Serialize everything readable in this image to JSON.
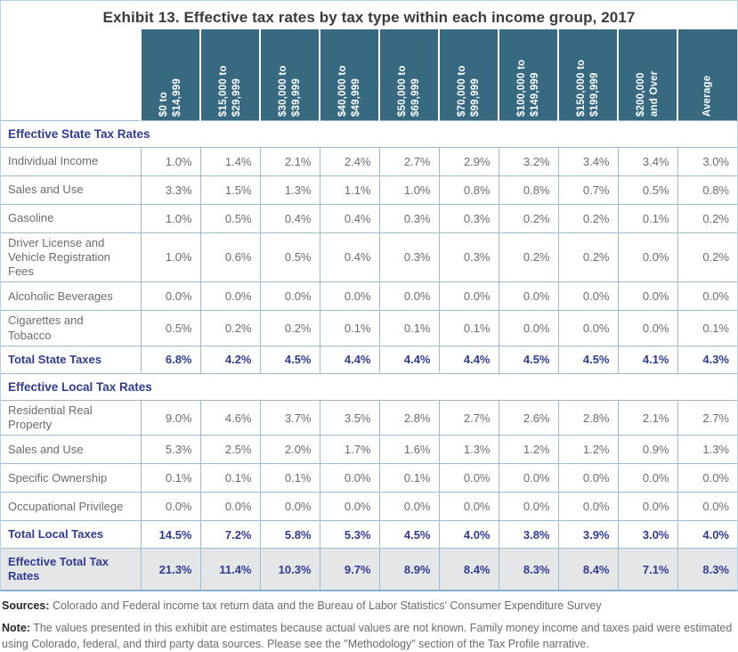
{
  "title": "Exhibit 13. Effective tax rates by tax type within each income group, 2017",
  "colors": {
    "header_bg": "#376980",
    "cell_border": "#9cbbd3",
    "outer_border": "#b7d0e2",
    "accent_text": "#303c92",
    "body_text": "#6b6c6f",
    "grand_row_bg": "#e5e6e8"
  },
  "table": {
    "income_groups": [
      "$0 to\n$14,999",
      "$15,000 to\n$29,999",
      "$30,000 to\n$39,999",
      "$40,000 to\n$49,999",
      "$50,000 to\n$69,999",
      "$70,000 to\n$99,999",
      "$100,000 to\n$149,999",
      "$150,000 to\n$199,999",
      "$200,000\nand Over",
      "Average"
    ],
    "sections": [
      {
        "label": "Effective State Tax Rates",
        "rows": [
          {
            "label": "Individual Income",
            "values": [
              "1.0%",
              "1.4%",
              "2.1%",
              "2.4%",
              "2.7%",
              "2.9%",
              "3.2%",
              "3.4%",
              "3.4%",
              "3.0%"
            ]
          },
          {
            "label": "Sales and Use",
            "values": [
              "3.3%",
              "1.5%",
              "1.3%",
              "1.1%",
              "1.0%",
              "0.8%",
              "0.8%",
              "0.7%",
              "0.5%",
              "0.8%"
            ]
          },
          {
            "label": "Gasoline",
            "values": [
              "1.0%",
              "0.5%",
              "0.4%",
              "0.4%",
              "0.3%",
              "0.3%",
              "0.2%",
              "0.2%",
              "0.1%",
              "0.2%"
            ]
          },
          {
            "label": "Driver License and\nVehicle Registration Fees",
            "values": [
              "1.0%",
              "0.6%",
              "0.5%",
              "0.4%",
              "0.3%",
              "0.3%",
              "0.2%",
              "0.2%",
              "0.0%",
              "0.2%"
            ]
          },
          {
            "label": "Alcoholic Beverages",
            "values": [
              "0.0%",
              "0.0%",
              "0.0%",
              "0.0%",
              "0.0%",
              "0.0%",
              "0.0%",
              "0.0%",
              "0.0%",
              "0.0%"
            ]
          },
          {
            "label": "Cigarettes and\nTobacco",
            "values": [
              "0.5%",
              "0.2%",
              "0.2%",
              "0.1%",
              "0.1%",
              "0.1%",
              "0.0%",
              "0.0%",
              "0.0%",
              "0.1%"
            ]
          }
        ],
        "total": {
          "label": "Total State Taxes",
          "values": [
            "6.8%",
            "4.2%",
            "4.5%",
            "4.4%",
            "4.4%",
            "4.4%",
            "4.5%",
            "4.5%",
            "4.1%",
            "4.3%"
          ]
        }
      },
      {
        "label": "Effective Local Tax Rates",
        "rows": [
          {
            "label": "Residential Real\nProperty",
            "values": [
              "9.0%",
              "4.6%",
              "3.7%",
              "3.5%",
              "2.8%",
              "2.7%",
              "2.6%",
              "2.8%",
              "2.1%",
              "2.7%"
            ]
          },
          {
            "label": "Sales and Use",
            "values": [
              "5.3%",
              "2.5%",
              "2.0%",
              "1.7%",
              "1.6%",
              "1.3%",
              "1.2%",
              "1.2%",
              "0.9%",
              "1.3%"
            ]
          },
          {
            "label": "Specific Ownership",
            "values": [
              "0.1%",
              "0.1%",
              "0.1%",
              "0.0%",
              "0.1%",
              "0.0%",
              "0.0%",
              "0.0%",
              "0.0%",
              "0.0%"
            ]
          },
          {
            "label": "Occupational Privilege",
            "values": [
              "0.0%",
              "0.0%",
              "0.0%",
              "0.0%",
              "0.0%",
              "0.0%",
              "0.0%",
              "0.0%",
              "0.0%",
              "0.0%"
            ]
          }
        ],
        "total": {
          "label": "Total Local Taxes",
          "values": [
            "14.5%",
            "7.2%",
            "5.8%",
            "5.3%",
            "4.5%",
            "4.0%",
            "3.8%",
            "3.9%",
            "3.0%",
            "4.0%"
          ]
        }
      }
    ],
    "grand_total": {
      "label": "Effective Total Tax\nRates",
      "values": [
        "21.3%",
        "11.4%",
        "10.3%",
        "9.7%",
        "8.9%",
        "8.4%",
        "8.3%",
        "8.4%",
        "7.1%",
        "8.3%"
      ]
    }
  },
  "footer": {
    "sources_label": "Sources:",
    "sources_text": "Colorado and Federal income tax return data and the Bureau of Labor Statistics' Consumer Expenditure Survey",
    "note_label": "Note:",
    "note_text": "The values presented in this exhibit are estimates because actual values are not known. Family money income and taxes paid were estimated using Colorado, federal, and third party data sources. Please see the \"Methodology\" section of the Tax Profile narrative."
  }
}
